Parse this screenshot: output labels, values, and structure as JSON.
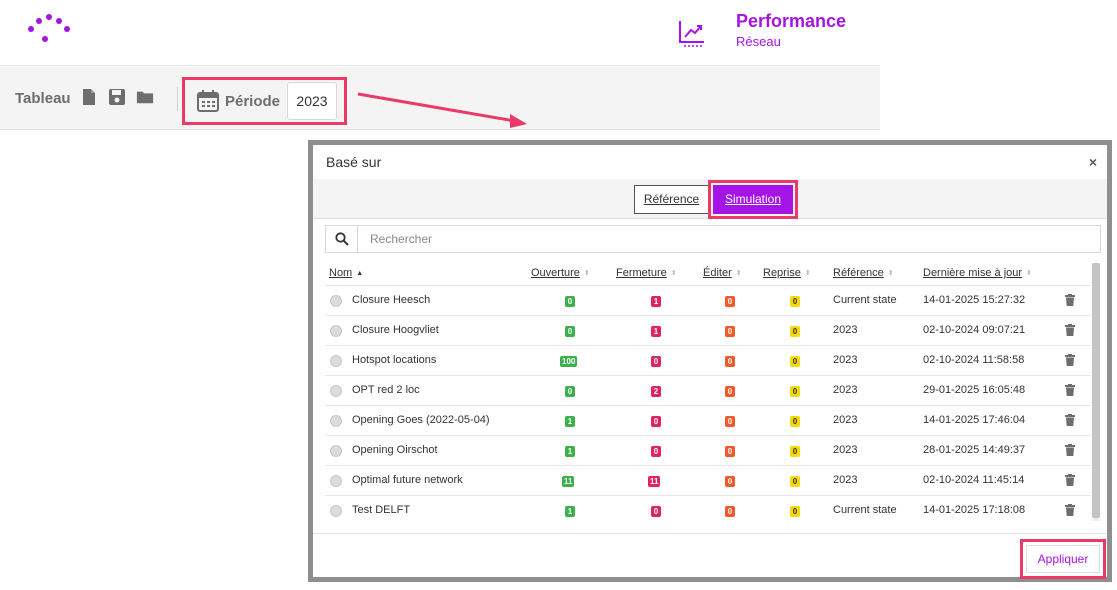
{
  "header": {
    "title": "Performance",
    "subtitle": "Réseau",
    "brand_color": "#a514e6",
    "icon": "trend-chart-icon"
  },
  "toolbar": {
    "label": "Tableau",
    "icons": [
      "new-file-icon",
      "save-icon",
      "folder-icon"
    ],
    "period_label": "Période",
    "period_value": "2023"
  },
  "modal": {
    "title": "Basé sur",
    "close_label": "×",
    "tabs": [
      {
        "label": "Référence",
        "active": false
      },
      {
        "label": "Simulation",
        "active": true
      }
    ],
    "search": {
      "placeholder": "Rechercher"
    },
    "columns": [
      {
        "label": "Nom",
        "sort": "asc"
      },
      {
        "label": "Ouverture",
        "sort": "none"
      },
      {
        "label": "Fermeture",
        "sort": "none"
      },
      {
        "label": "Éditer",
        "sort": "none"
      },
      {
        "label": "Reprise",
        "sort": "none"
      },
      {
        "label": "Référence",
        "sort": "none"
      },
      {
        "label": "Dernière mise à jour",
        "sort": "none"
      }
    ],
    "rows": [
      {
        "name": "Closure Heesch",
        "ouverture": "0",
        "fermeture": "1",
        "editer": "0",
        "reprise": "0",
        "reference": "Current state",
        "updated": "14-01-2025 15:27:32"
      },
      {
        "name": "Closure Hoogvliet",
        "ouverture": "0",
        "fermeture": "1",
        "editer": "0",
        "reprise": "0",
        "reference": "2023",
        "updated": "02-10-2024 09:07:21"
      },
      {
        "name": "Hotspot locations",
        "ouverture": "100",
        "fermeture": "0",
        "editer": "0",
        "reprise": "0",
        "reference": "2023",
        "updated": "02-10-2024 11:58:58"
      },
      {
        "name": "OPT red 2 loc",
        "ouverture": "0",
        "fermeture": "2",
        "editer": "0",
        "reprise": "0",
        "reference": "2023",
        "updated": "29-01-2025 16:05:48"
      },
      {
        "name": "Opening Goes (2022-05-04)",
        "ouverture": "1",
        "fermeture": "0",
        "editer": "0",
        "reprise": "0",
        "reference": "2023",
        "updated": "14-01-2025 17:46:04"
      },
      {
        "name": "Opening Oirschot",
        "ouverture": "1",
        "fermeture": "0",
        "editer": "0",
        "reprise": "0",
        "reference": "2023",
        "updated": "28-01-2025 14:49:37"
      },
      {
        "name": "Optimal future network",
        "ouverture": "11",
        "fermeture": "11",
        "editer": "0",
        "reprise": "0",
        "reference": "2023",
        "updated": "02-10-2024 11:45:14"
      },
      {
        "name": "Test DELFT",
        "ouverture": "1",
        "fermeture": "0",
        "editer": "0",
        "reprise": "0",
        "reference": "Current state",
        "updated": "14-01-2025 17:18:08"
      }
    ],
    "apply_label": "Appliquer",
    "badge_colors": {
      "ouverture": "#3bb04b",
      "fermeture": "#e0245e",
      "editer": "#f05a28",
      "reprise": "#f5d90a"
    },
    "highlight_color": "#ea3a6a"
  }
}
